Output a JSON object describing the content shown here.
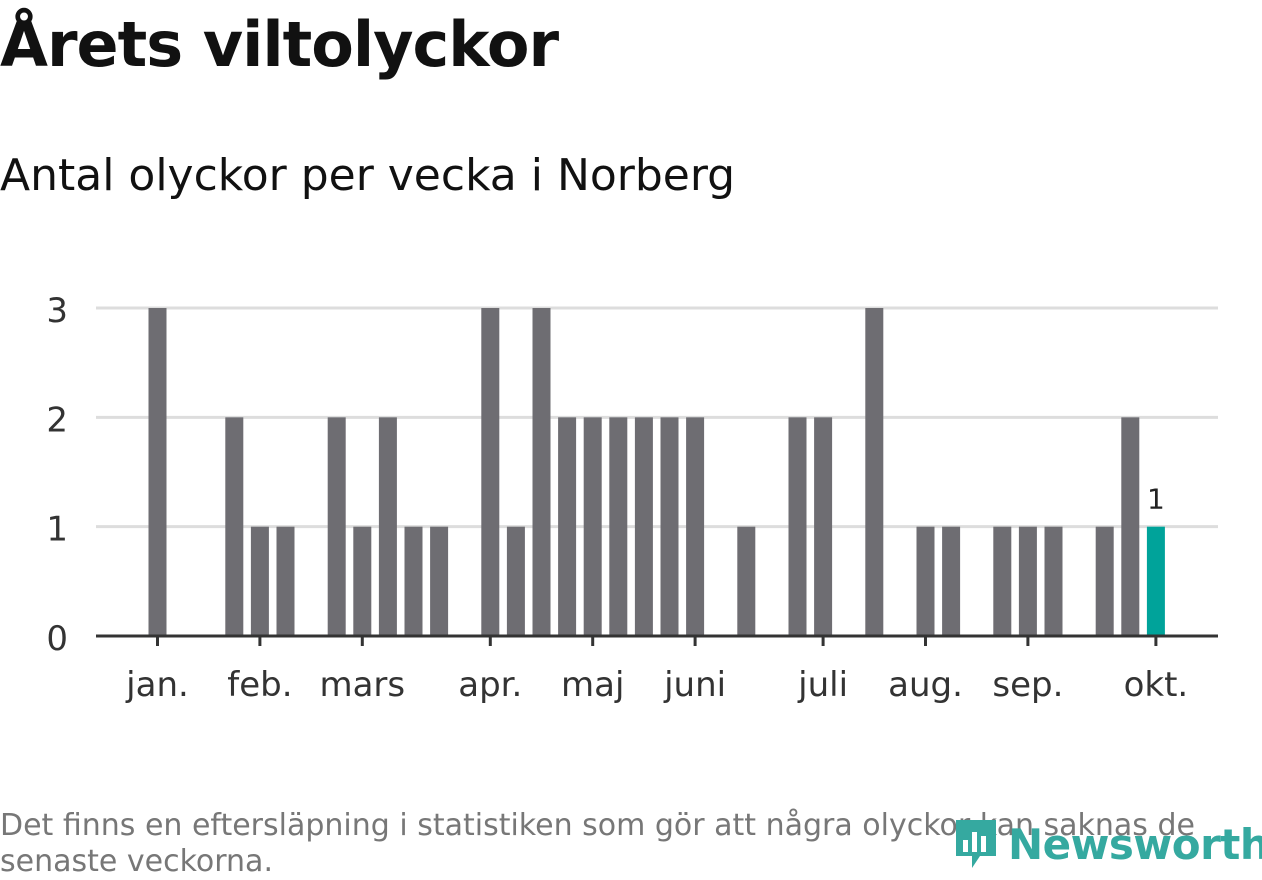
{
  "header": {
    "title": "Årets viltolyckor",
    "subtitle": "Antal olyckor per vecka i Norberg"
  },
  "footer": {
    "note": "Det finns en eftersläpning i statistiken som gör att några olyckor kan saknas de senaste veckorna.",
    "brand": "Newsworthy"
  },
  "colors": {
    "bar": "#6e6d72",
    "highlight": "#00a39a",
    "grid": "#dddddd",
    "axis": "#333333",
    "brand": "#35a9a0"
  },
  "chart_data": {
    "type": "bar",
    "title": "Antal olyckor per vecka i Norberg",
    "xlabel": "",
    "ylabel": "Antal olyckor",
    "ylim": [
      0,
      3
    ],
    "yticks": [
      0,
      1,
      2,
      3
    ],
    "grid": true,
    "weeks": [
      1,
      2,
      3,
      4,
      5,
      6,
      7,
      8,
      9,
      10,
      11,
      12,
      13,
      14,
      15,
      16,
      17,
      18,
      19,
      20,
      21,
      22,
      23,
      24,
      25,
      26,
      27,
      28,
      29,
      30,
      31,
      32,
      33,
      34,
      35,
      36,
      37,
      38,
      39,
      40
    ],
    "values": [
      3,
      0,
      0,
      2,
      1,
      1,
      0,
      2,
      1,
      2,
      1,
      1,
      0,
      3,
      1,
      3,
      2,
      2,
      2,
      2,
      2,
      2,
      0,
      1,
      0,
      2,
      2,
      0,
      3,
      0,
      1,
      1,
      0,
      1,
      1,
      1,
      0,
      1,
      2,
      1
    ],
    "highlight_index": 39,
    "highlight_label": "1",
    "month_labels": [
      {
        "label": "jan.",
        "week": 1
      },
      {
        "label": "feb.",
        "week": 5
      },
      {
        "label": "mars",
        "week": 9
      },
      {
        "label": "apr.",
        "week": 14
      },
      {
        "label": "maj",
        "week": 18
      },
      {
        "label": "juni",
        "week": 22
      },
      {
        "label": "juli",
        "week": 27
      },
      {
        "label": "aug.",
        "week": 31
      },
      {
        "label": "sep.",
        "week": 35
      },
      {
        "label": "okt.",
        "week": 40
      }
    ]
  }
}
